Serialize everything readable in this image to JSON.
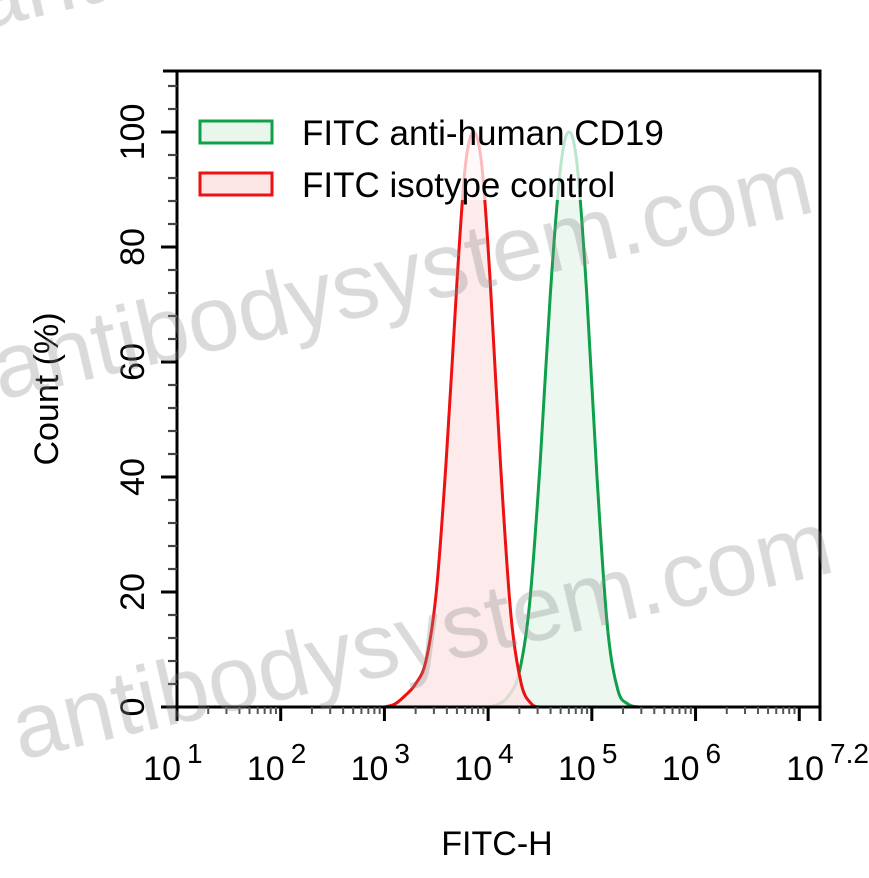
{
  "chart_data": {
    "type": "area",
    "title": "",
    "xlabel": "FITC-H",
    "ylabel": "Count  (%)",
    "xscale": "log10",
    "xlim": [
      10,
      15848931.92
    ],
    "ylim": [
      0,
      110
    ],
    "x_tick_labels": [
      {
        "base": "10",
        "exp": "1"
      },
      {
        "base": "10",
        "exp": "2"
      },
      {
        "base": "10",
        "exp": "3"
      },
      {
        "base": "10",
        "exp": "4"
      },
      {
        "base": "10",
        "exp": "5"
      },
      {
        "base": "10",
        "exp": "6"
      },
      {
        "base": "10",
        "exp": "7.2"
      }
    ],
    "x_tick_log_positions": [
      1,
      2,
      3,
      4,
      5,
      6,
      7.2
    ],
    "y_ticks": [
      0,
      20,
      40,
      60,
      80,
      100
    ],
    "grid": false,
    "legend_position": "upper-left",
    "series": [
      {
        "name": "FITC anti-human CD19",
        "stroke": "#0ea04a",
        "fill": "#e8f6ec",
        "peak_log_x": 4.78,
        "peak_y": 100,
        "points_log_x": [
          4.0,
          4.1,
          4.2,
          4.3,
          4.4,
          4.5,
          4.6,
          4.7,
          4.78,
          4.86,
          4.95,
          5.05,
          5.15,
          5.25,
          5.35,
          5.45
        ],
        "points_y": [
          0,
          0.5,
          2,
          6,
          18,
          42,
          72,
          94,
          100,
          94,
          72,
          40,
          14,
          3,
          0.5,
          0
        ]
      },
      {
        "name": "FITC isotype control",
        "stroke": "#ee1111",
        "fill": "#fde6e6",
        "peak_log_x": 3.86,
        "peak_y": 100,
        "points_log_x": [
          3.0,
          3.1,
          3.2,
          3.3,
          3.4,
          3.5,
          3.6,
          3.7,
          3.78,
          3.86,
          3.94,
          4.02,
          4.12,
          4.22,
          4.32,
          4.42,
          4.5
        ],
        "points_y": [
          0,
          0.5,
          2,
          4,
          8,
          20,
          44,
          74,
          94,
          100,
          94,
          74,
          42,
          16,
          4,
          0.5,
          0
        ]
      }
    ]
  },
  "legend": {
    "items": [
      {
        "label": "FITC anti-human CD19",
        "stroke": "#0ea04a",
        "fill": "#e8f6ec"
      },
      {
        "label": "FITC isotype control",
        "stroke": "#ee1111",
        "fill": "#fde6e6"
      }
    ]
  },
  "axes": {
    "xlabel": "FITC-H",
    "ylabel": "Count  (%)",
    "y_tick_labels": [
      "0",
      "20",
      "40",
      "60",
      "80",
      "100"
    ]
  },
  "watermark": {
    "text": "antibodysystem.com"
  }
}
